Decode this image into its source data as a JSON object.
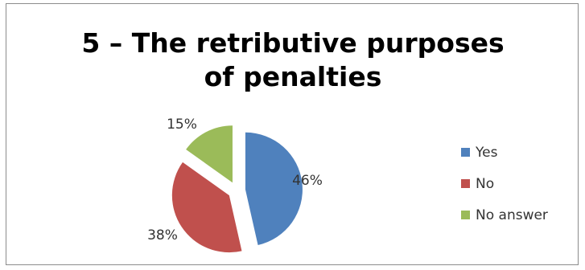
{
  "chart_data": {
    "type": "pie",
    "title_lines": [
      "5 – The retributive purposes",
      "of penalties"
    ],
    "categories": [
      "Yes",
      "No",
      "No answer"
    ],
    "values": [
      46,
      38,
      15
    ],
    "labels": [
      "46%",
      "38%",
      "15%"
    ],
    "colors": [
      "#4f81bd",
      "#c0504d",
      "#9bbb59"
    ],
    "legend_position": "right",
    "exploded": true
  }
}
